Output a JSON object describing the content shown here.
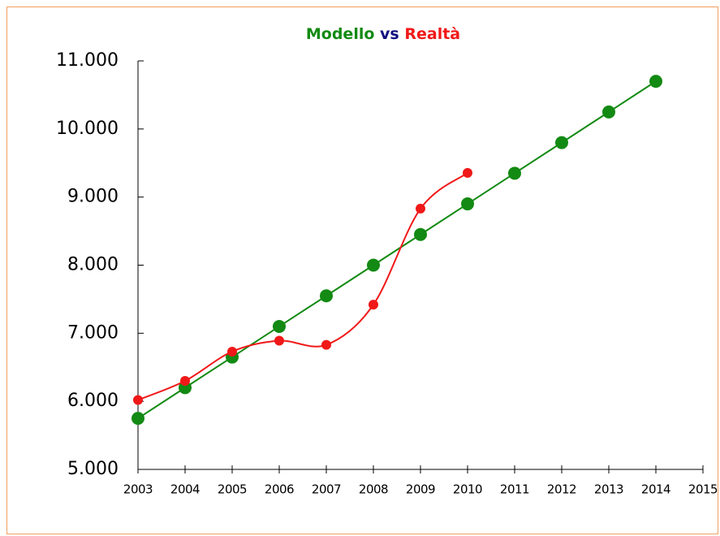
{
  "chart_data": {
    "type": "line",
    "title_parts": [
      {
        "text": "Modello",
        "color": "#138a13"
      },
      {
        "text": "vs",
        "color": "#101080"
      },
      {
        "text": "Realtà",
        "color": "#f01818"
      }
    ],
    "x": [
      2003,
      2004,
      2005,
      2006,
      2007,
      2008,
      2009,
      2010,
      2011,
      2012,
      2013,
      2014
    ],
    "series": [
      {
        "name": "Modello",
        "color": "#138a13",
        "values": [
          5750,
          6200,
          6650,
          7100,
          7550,
          8000,
          8450,
          8900,
          9350,
          9800,
          10250,
          10700
        ]
      },
      {
        "name": "Realtà",
        "color": "#f01818",
        "values": [
          6020,
          6300,
          6730,
          6890,
          6830,
          7420,
          8830,
          9355,
          null,
          null,
          null,
          null
        ]
      }
    ],
    "xlim": [
      2003,
      2015
    ],
    "xticks": [
      2003,
      2004,
      2005,
      2006,
      2007,
      2008,
      2009,
      2010,
      2011,
      2012,
      2013,
      2014,
      2015
    ],
    "ylim": [
      5000,
      11000
    ],
    "yticks": [
      {
        "value": 5000,
        "label": "5.000"
      },
      {
        "value": 6000,
        "label": "6.000"
      },
      {
        "value": 7000,
        "label": "7.000"
      },
      {
        "value": 8000,
        "label": "8.000"
      },
      {
        "value": 9000,
        "label": "9.000"
      },
      {
        "value": 10000,
        "label": "10.000"
      },
      {
        "value": 11000,
        "label": "11.000"
      }
    ]
  }
}
